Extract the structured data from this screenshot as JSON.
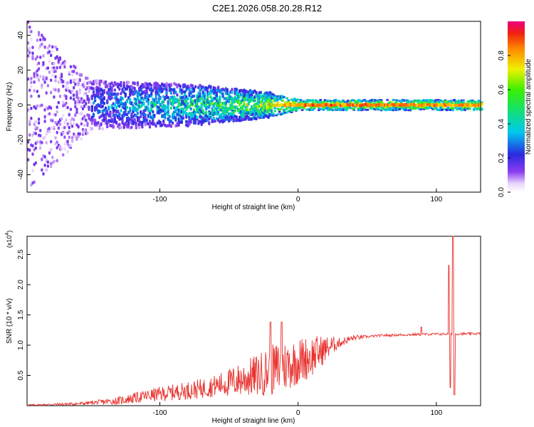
{
  "title": "C2E1.2026.058.20.28.R12",
  "colors": {
    "background": "#ffffff",
    "axis": "#000000",
    "snr_line": "#e8332f"
  },
  "chart_data": [
    {
      "type": "heatmap",
      "name": "spectrogram",
      "xlabel": "Height of straight line (km)",
      "ylabel": "Frequency (Hz)",
      "xlim": [
        -196,
        132
      ],
      "ylim": [
        -50,
        48
      ],
      "xticks": [
        -100,
        0,
        100
      ],
      "yticks": [
        -40,
        -20,
        0,
        20,
        40
      ],
      "colorbar": {
        "label": "Normalized spectral amplitude",
        "range": [
          0,
          1
        ],
        "ticks": [
          "0.0",
          "0.2",
          "0.4",
          "0.6",
          "0.8"
        ],
        "tick_values": [
          0.0,
          0.2,
          0.4,
          0.6,
          0.8
        ],
        "colormap": "rainbow (white-violet-blue-cyan-green-yellow-red-magenta)"
      },
      "ridge": {
        "description": "Dominant signal near 0 Hz; noisy broadband below -150 km, spreading cluster -150 to -20 km, narrow strong ridge above -20 km",
        "center_hz": 0,
        "spread_hz": [
          {
            "x": -196,
            "spread": 48
          },
          {
            "x": -150,
            "spread": 14
          },
          {
            "x": -80,
            "spread": 12
          },
          {
            "x": -20,
            "spread": 7
          },
          {
            "x": 0,
            "spread": 3
          },
          {
            "x": 132,
            "spread": 3
          }
        ],
        "peak_amplitude": [
          {
            "x": -196,
            "amp": 0.12
          },
          {
            "x": -150,
            "amp": 0.3
          },
          {
            "x": -80,
            "amp": 0.5
          },
          {
            "x": -20,
            "amp": 0.75
          },
          {
            "x": 0,
            "amp": 0.9
          },
          {
            "x": 132,
            "amp": 0.85
          }
        ]
      }
    },
    {
      "type": "line",
      "name": "snr",
      "xlabel": "Height of straight line (km)",
      "ylabel": "SNR (10 * v/v)",
      "multiplier": "(x10",
      "multiplier_exp": "4",
      "multiplier_close": ")",
      "xlim": [
        -196,
        132
      ],
      "ylim": [
        0,
        2.8
      ],
      "xticks": [
        -100,
        0,
        100
      ],
      "yticks": [
        "0.5",
        "1.0",
        "1.5",
        "2.0",
        "2.5"
      ],
      "ytick_values": [
        0.5,
        1.0,
        1.5,
        2.0,
        2.5
      ],
      "series": [
        {
          "name": "SNR",
          "trend_points": [
            {
              "x": -196,
              "y": 0.01
            },
            {
              "x": -160,
              "y": 0.03
            },
            {
              "x": -130,
              "y": 0.08
            },
            {
              "x": -110,
              "y": 0.16
            },
            {
              "x": -90,
              "y": 0.22
            },
            {
              "x": -70,
              "y": 0.28
            },
            {
              "x": -50,
              "y": 0.38
            },
            {
              "x": -30,
              "y": 0.5
            },
            {
              "x": -10,
              "y": 0.65
            },
            {
              "x": 10,
              "y": 0.82
            },
            {
              "x": 25,
              "y": 1.0
            },
            {
              "x": 40,
              "y": 1.12
            },
            {
              "x": 60,
              "y": 1.16
            },
            {
              "x": 90,
              "y": 1.18
            },
            {
              "x": 132,
              "y": 1.19
            }
          ],
          "noise_envelope": [
            {
              "x": -196,
              "a": 0.01
            },
            {
              "x": -150,
              "a": 0.03
            },
            {
              "x": -100,
              "a": 0.12
            },
            {
              "x": -60,
              "a": 0.18
            },
            {
              "x": -30,
              "a": 0.35
            },
            {
              "x": -15,
              "a": 0.45
            },
            {
              "x": 10,
              "a": 0.35
            },
            {
              "x": 30,
              "a": 0.08
            },
            {
              "x": 50,
              "a": 0.02
            },
            {
              "x": 132,
              "a": 0.02
            }
          ],
          "spikes": [
            {
              "x": -20,
              "y": 1.38
            },
            {
              "x": -12,
              "y": 1.38
            },
            {
              "x": 89,
              "y": 1.3
            },
            {
              "x": 109,
              "y": 2.32
            },
            {
              "x": 110,
              "y": 0.3
            },
            {
              "x": 112,
              "y": 2.8
            },
            {
              "x": 113,
              "y": 0.18
            }
          ]
        }
      ]
    }
  ]
}
